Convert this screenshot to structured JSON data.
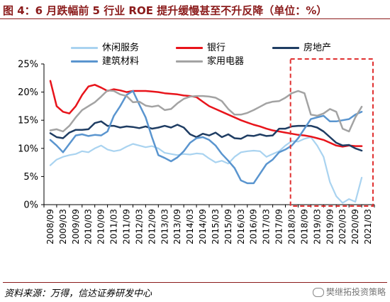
{
  "title": "图 4：6 月跌幅前 5 行业 ROE 提升缓慢甚至不升反降（单位：%）",
  "source": "资料来源：万得，信达证券研发中心",
  "watermark": "樊继拓投资策略",
  "colors": {
    "title": "#8b1b1b",
    "highlight_box": "#e03030"
  },
  "chart_data": {
    "type": "line",
    "title": "",
    "xlabel": "",
    "ylabel": "",
    "ylim": [
      0,
      25
    ],
    "yticks": [
      "0%",
      "5%",
      "10%",
      "15%",
      "20%",
      "25%"
    ],
    "ytick_values": [
      0,
      5,
      10,
      15,
      20,
      25
    ],
    "x_tick_labels": [
      "2008/09",
      "2009/03",
      "2009/09",
      "2010/03",
      "2010/09",
      "2011/03",
      "2011/09",
      "2012/03",
      "2012/09",
      "2013/03",
      "2013/09",
      "2014/03",
      "2014/09",
      "2015/03",
      "2015/09",
      "2016/03",
      "2016/09",
      "2017/03",
      "2017/09",
      "2018/03",
      "2018/09",
      "2019/03",
      "2019/09",
      "2020/03",
      "2020/09",
      "2021/03"
    ],
    "legend_position": "top",
    "highlight": {
      "x_start": 19.4,
      "x_end": 26
    },
    "series": [
      {
        "name": "休闲服务",
        "color": "#a9d3f0",
        "width": 2.2,
        "points": [
          [
            0,
            7
          ],
          [
            0.5,
            8
          ],
          [
            1,
            8.5
          ],
          [
            1.5,
            8.8
          ],
          [
            2,
            9
          ],
          [
            2.5,
            9.5
          ],
          [
            3,
            9.3
          ],
          [
            3.5,
            10
          ],
          [
            4,
            10.5
          ],
          [
            4.5,
            9.8
          ],
          [
            5,
            9.5
          ],
          [
            5.5,
            9.7
          ],
          [
            6,
            10.3
          ],
          [
            6.5,
            10.8
          ],
          [
            7,
            10.5
          ],
          [
            7.5,
            10.2
          ],
          [
            8,
            10.4
          ],
          [
            8.5,
            10
          ],
          [
            9,
            9.2
          ],
          [
            9.5,
            9
          ],
          [
            10,
            8.8
          ],
          [
            10.5,
            9
          ],
          [
            11,
            8.9
          ],
          [
            11.5,
            9.1
          ],
          [
            12,
            9
          ],
          [
            12.5,
            8.2
          ],
          [
            13,
            7.5
          ],
          [
            13.5,
            7.8
          ],
          [
            14,
            7.3
          ],
          [
            14.5,
            8.5
          ],
          [
            15,
            9.3
          ],
          [
            15.5,
            9.5
          ],
          [
            16,
            9.6
          ],
          [
            16.5,
            9.5
          ],
          [
            17,
            8.5
          ],
          [
            17.5,
            9
          ],
          [
            18,
            9.5
          ],
          [
            18.5,
            10.5
          ],
          [
            19,
            11.3
          ],
          [
            19.5,
            11.2
          ],
          [
            20,
            11.7
          ],
          [
            20.5,
            12
          ],
          [
            21,
            10.5
          ],
          [
            21.5,
            8.5
          ],
          [
            22,
            4
          ],
          [
            22.5,
            1.5
          ],
          [
            23,
            0.3
          ],
          [
            23.5,
            1
          ],
          [
            24,
            0.5
          ],
          [
            24.5,
            4.8
          ]
        ]
      },
      {
        "name": "银行",
        "color": "#e8141b",
        "width": 2.5,
        "points": [
          [
            0,
            22
          ],
          [
            0.5,
            17.5
          ],
          [
            1,
            16.5
          ],
          [
            1.5,
            16.2
          ],
          [
            2,
            17.5
          ],
          [
            2.5,
            19.5
          ],
          [
            3,
            21
          ],
          [
            3.5,
            21.3
          ],
          [
            4,
            20.8
          ],
          [
            4.5,
            20.2
          ],
          [
            5,
            20.5
          ],
          [
            5.5,
            20.3
          ],
          [
            6,
            20
          ],
          [
            6.5,
            20.2
          ],
          [
            7,
            20.2
          ],
          [
            7.5,
            20.2
          ],
          [
            8,
            20.1
          ],
          [
            8.5,
            20
          ],
          [
            9,
            19.8
          ],
          [
            9.5,
            19.7
          ],
          [
            10,
            19.6
          ],
          [
            10.5,
            19.4
          ],
          [
            11,
            19.3
          ],
          [
            11.5,
            19.1
          ],
          [
            12,
            18.3
          ],
          [
            12.5,
            17.5
          ],
          [
            13,
            17
          ],
          [
            13.5,
            16.5
          ],
          [
            14,
            16
          ],
          [
            14.5,
            15.5
          ],
          [
            15,
            15
          ],
          [
            15.5,
            14.6
          ],
          [
            16,
            14.2
          ],
          [
            16.5,
            13.9
          ],
          [
            17,
            13.5
          ],
          [
            17.5,
            13.2
          ],
          [
            18,
            13
          ],
          [
            18.5,
            12.8
          ],
          [
            19,
            12.6
          ],
          [
            19.5,
            12.4
          ],
          [
            20,
            12.3
          ],
          [
            20.5,
            12.1
          ],
          [
            21,
            11.8
          ],
          [
            21.5,
            11.5
          ],
          [
            22,
            11
          ],
          [
            22.5,
            10.5
          ],
          [
            23,
            10.3
          ],
          [
            23.5,
            10.5
          ],
          [
            24,
            10.4
          ],
          [
            24.5,
            10.4
          ]
        ]
      },
      {
        "name": "房地产",
        "color": "#1f3d63",
        "width": 2.5,
        "points": [
          [
            0,
            12.7
          ],
          [
            0.5,
            12
          ],
          [
            1,
            11.8
          ],
          [
            1.5,
            12.8
          ],
          [
            2,
            13.3
          ],
          [
            2.5,
            13.3
          ],
          [
            3,
            13.4
          ],
          [
            3.5,
            14.5
          ],
          [
            4,
            14.8
          ],
          [
            4.5,
            14
          ],
          [
            5,
            14
          ],
          [
            5.5,
            13.7
          ],
          [
            6,
            13.9
          ],
          [
            6.5,
            13.8
          ],
          [
            7,
            13.6
          ],
          [
            7.5,
            13.9
          ],
          [
            8,
            13.5
          ],
          [
            8.5,
            13.7
          ],
          [
            9,
            14
          ],
          [
            9.5,
            13.7
          ],
          [
            10,
            14.2
          ],
          [
            10.5,
            13.7
          ],
          [
            11,
            12.5
          ],
          [
            11.5,
            12
          ],
          [
            12,
            12.6
          ],
          [
            12.5,
            12.3
          ],
          [
            13,
            12.8
          ],
          [
            13.5,
            12
          ],
          [
            14,
            12.5
          ],
          [
            14.5,
            11.8
          ],
          [
            15,
            11.7
          ],
          [
            15.5,
            12.3
          ],
          [
            16,
            12.2
          ],
          [
            16.5,
            12.5
          ],
          [
            17,
            12.2
          ],
          [
            17.5,
            12.3
          ],
          [
            18,
            13.5
          ],
          [
            18.5,
            13.5
          ],
          [
            19,
            13.9
          ],
          [
            19.5,
            14
          ],
          [
            20,
            14
          ],
          [
            20.5,
            14
          ],
          [
            21,
            13.7
          ],
          [
            21.5,
            13
          ],
          [
            22,
            12
          ],
          [
            22.5,
            11
          ],
          [
            23,
            10.5
          ],
          [
            23.5,
            10.6
          ],
          [
            24,
            10
          ],
          [
            24.5,
            9.6
          ]
        ]
      },
      {
        "name": "建筑材料",
        "color": "#5a95cf",
        "width": 2.5,
        "points": [
          [
            0,
            11.5
          ],
          [
            0.5,
            10.5
          ],
          [
            1,
            9.3
          ],
          [
            1.5,
            10.8
          ],
          [
            2,
            12.3
          ],
          [
            2.5,
            12.5
          ],
          [
            3,
            12.2
          ],
          [
            3.5,
            12.4
          ],
          [
            4,
            12.3
          ],
          [
            4.5,
            13
          ],
          [
            5,
            15.8
          ],
          [
            5.5,
            17.5
          ],
          [
            6,
            19.5
          ],
          [
            6.5,
            20.2
          ],
          [
            7,
            17.8
          ],
          [
            7.5,
            15.5
          ],
          [
            8,
            12
          ],
          [
            8.5,
            8.8
          ],
          [
            9,
            8.3
          ],
          [
            9.5,
            7.7
          ],
          [
            10,
            8.4
          ],
          [
            10.5,
            9.5
          ],
          [
            11,
            11
          ],
          [
            11.5,
            11.8
          ],
          [
            12,
            12
          ],
          [
            12.5,
            11.5
          ],
          [
            13,
            10.5
          ],
          [
            13.5,
            9
          ],
          [
            14,
            7.8
          ],
          [
            14.5,
            6.5
          ],
          [
            15,
            4.3
          ],
          [
            15.5,
            3.8
          ],
          [
            16,
            3.8
          ],
          [
            16.5,
            5.5
          ],
          [
            17,
            7.2
          ],
          [
            17.5,
            8
          ],
          [
            18,
            9.3
          ],
          [
            18.5,
            9.8
          ],
          [
            19,
            10.5
          ],
          [
            19.5,
            11.8
          ],
          [
            20,
            13.5
          ],
          [
            20.5,
            15.2
          ],
          [
            21,
            15.5
          ],
          [
            21.5,
            15.8
          ],
          [
            22,
            14.8
          ],
          [
            22.5,
            14.8
          ],
          [
            23,
            15
          ],
          [
            23.5,
            15.2
          ],
          [
            24,
            16
          ],
          [
            24.5,
            16.5
          ]
        ]
      },
      {
        "name": "家用电器",
        "color": "#a3a3a3",
        "width": 2.5,
        "points": [
          [
            0,
            13.2
          ],
          [
            0.5,
            13.4
          ],
          [
            1,
            13
          ],
          [
            1.5,
            14
          ],
          [
            2,
            15.5
          ],
          [
            2.5,
            16.8
          ],
          [
            3,
            17.5
          ],
          [
            3.5,
            18.2
          ],
          [
            4,
            19.2
          ],
          [
            4.5,
            20.3
          ],
          [
            5,
            20.2
          ],
          [
            5.5,
            19.6
          ],
          [
            6,
            19.3
          ],
          [
            6.5,
            18.2
          ],
          [
            7,
            18.3
          ],
          [
            7.5,
            17.6
          ],
          [
            8,
            17.4
          ],
          [
            8.5,
            17.6
          ],
          [
            9,
            16.8
          ],
          [
            9.5,
            17
          ],
          [
            10,
            18
          ],
          [
            10.5,
            18.8
          ],
          [
            11,
            19.2
          ],
          [
            11.5,
            19.3
          ],
          [
            12,
            19.3
          ],
          [
            12.5,
            19.2
          ],
          [
            13,
            19
          ],
          [
            13.5,
            18.4
          ],
          [
            14,
            17
          ],
          [
            14.5,
            16
          ],
          [
            15,
            16
          ],
          [
            15.5,
            16.3
          ],
          [
            16,
            16.8
          ],
          [
            16.5,
            17.4
          ],
          [
            17,
            18
          ],
          [
            17.5,
            18.3
          ],
          [
            18,
            18.4
          ],
          [
            18.5,
            19
          ],
          [
            19,
            19.8
          ],
          [
            19.5,
            20.2
          ],
          [
            20,
            19.8
          ],
          [
            20.5,
            16
          ],
          [
            21,
            15.8
          ],
          [
            21.5,
            16.2
          ],
          [
            22,
            17
          ],
          [
            22.5,
            16.5
          ],
          [
            23,
            13.5
          ],
          [
            23.5,
            13
          ],
          [
            24,
            15.5
          ],
          [
            24.5,
            17.4
          ]
        ]
      }
    ]
  }
}
